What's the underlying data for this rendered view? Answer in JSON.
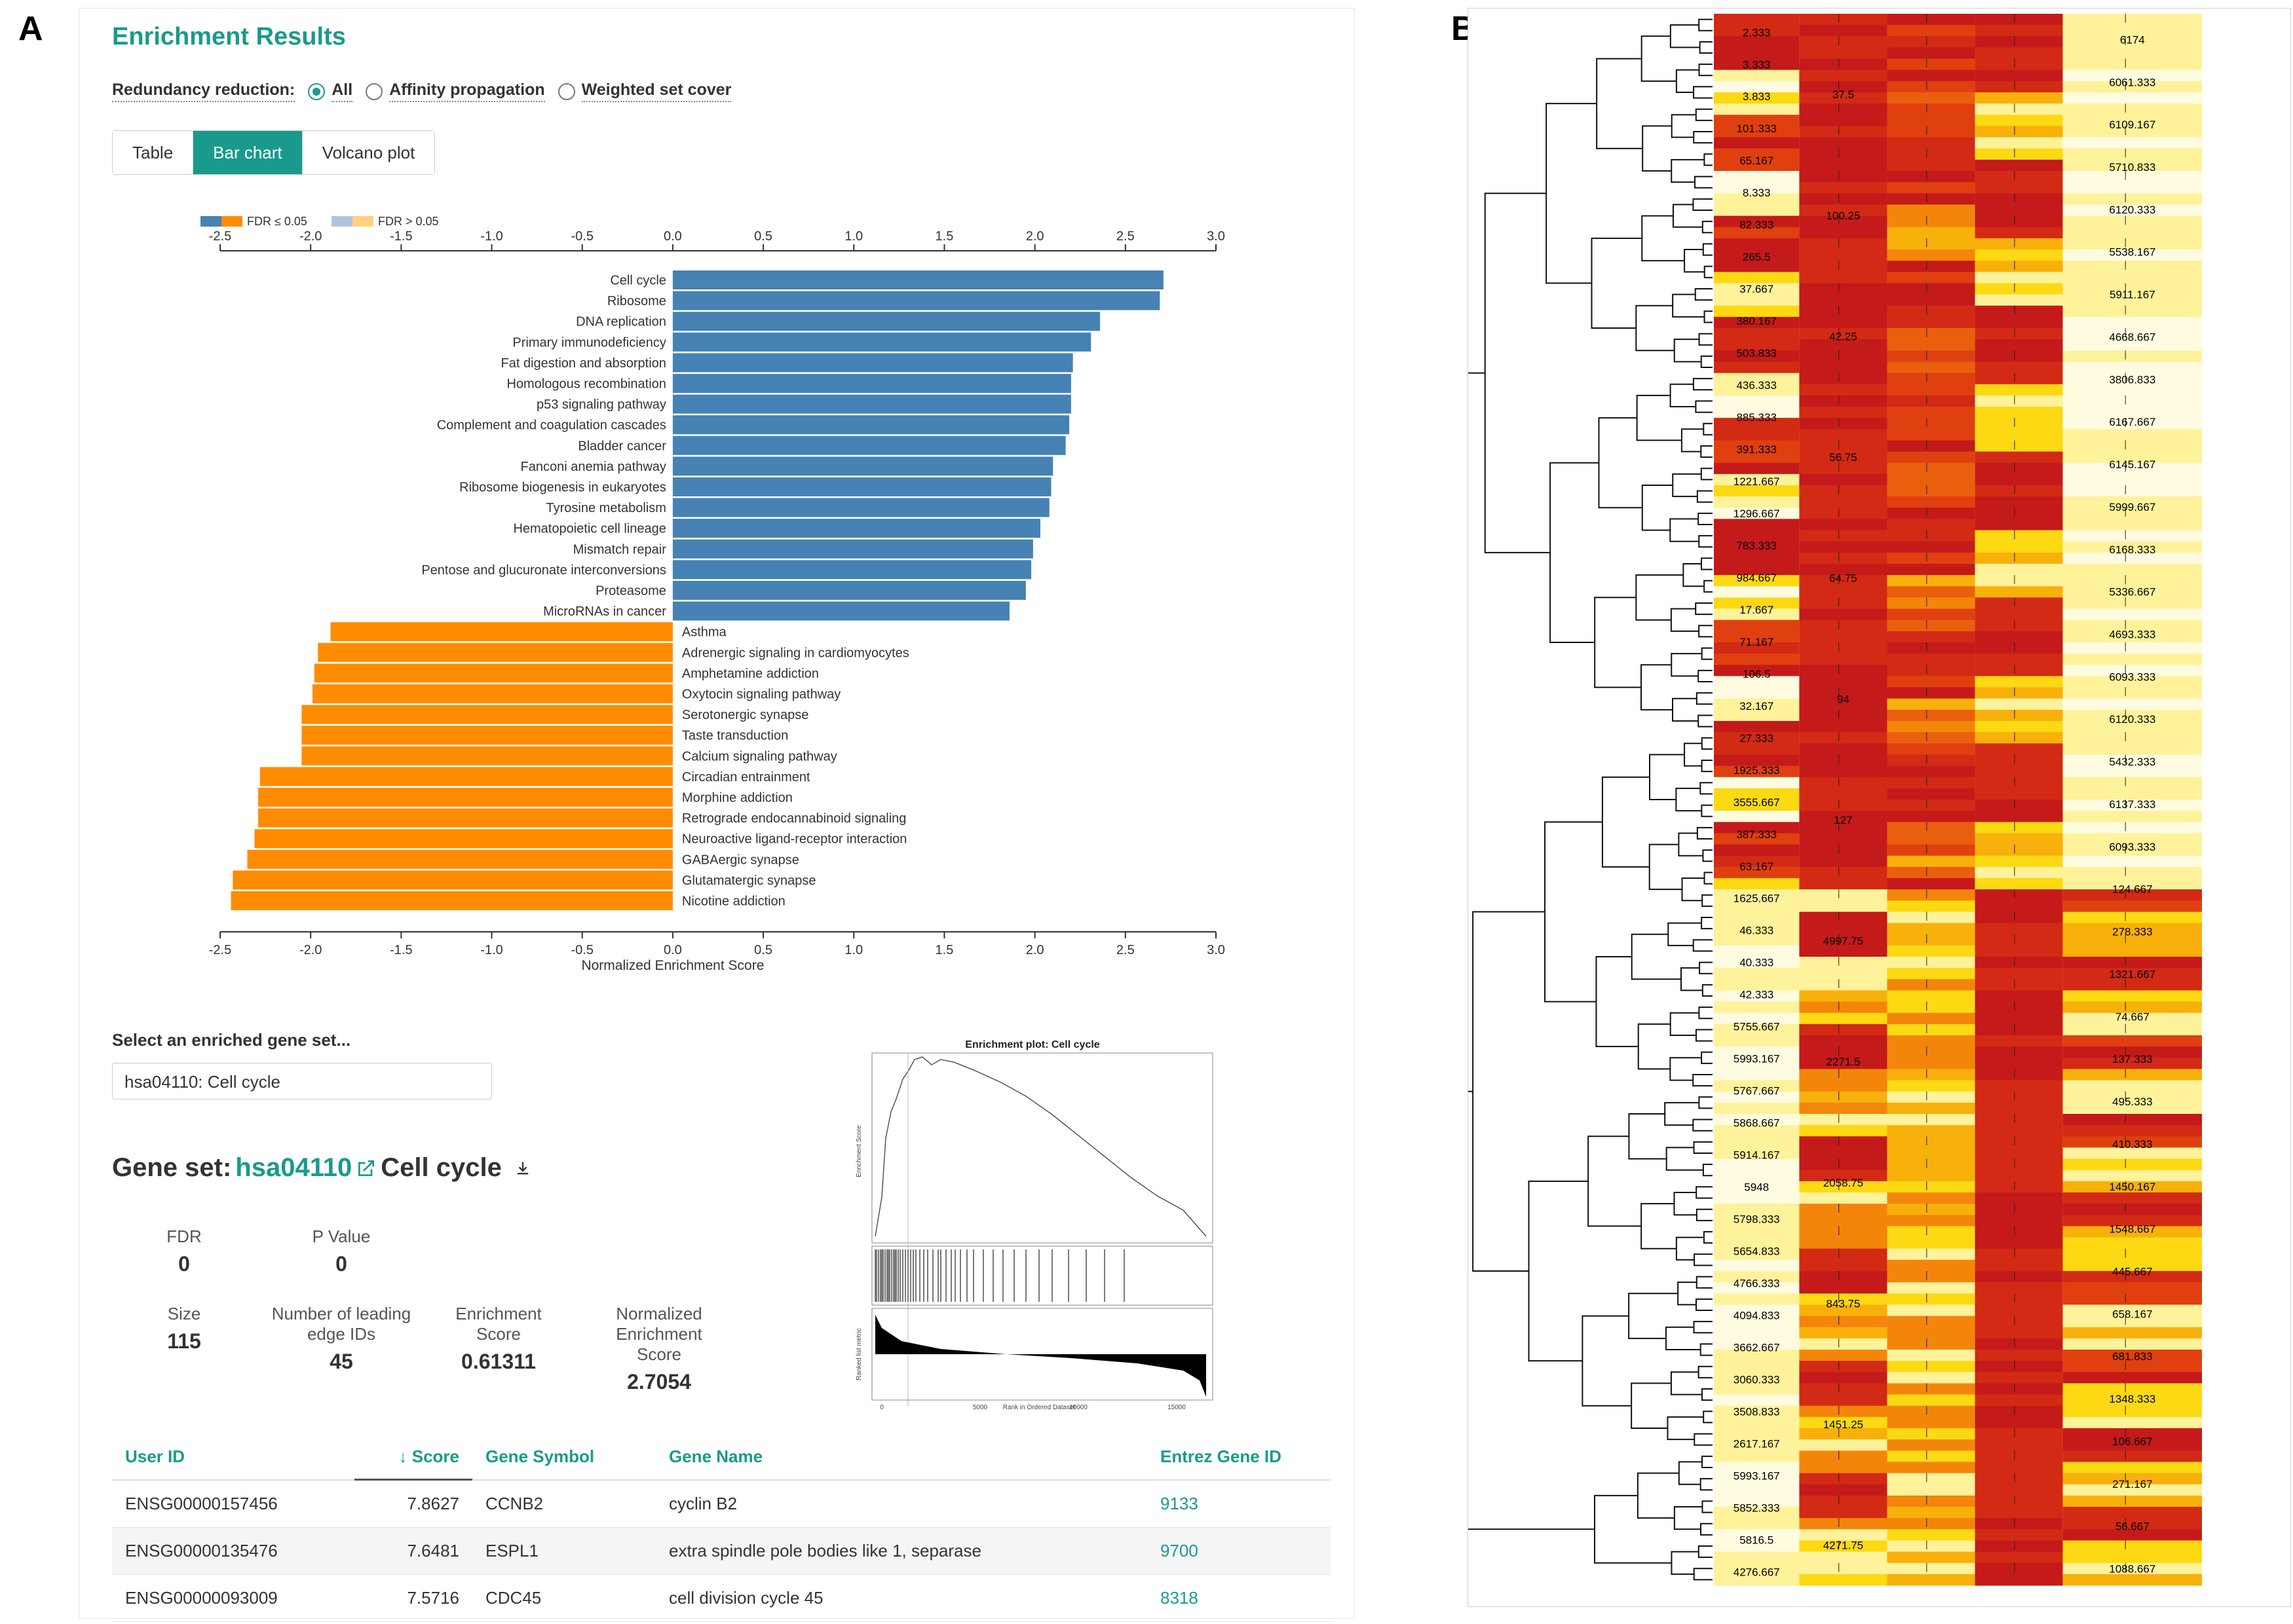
{
  "panel_a_letter": "A",
  "panel_b_letter": "B",
  "title": "Enrichment Results",
  "redundancy": {
    "label": "Redundancy reduction:",
    "options": [
      "All",
      "Affinity propagation",
      "Weighted set cover"
    ],
    "selected": "All"
  },
  "tabs": [
    "Table",
    "Bar chart",
    "Volcano plot"
  ],
  "active_tab": "Bar chart",
  "chart_data": {
    "type": "bar",
    "orientation": "horizontal",
    "xlabel": "Normalized Enrichment Score",
    "xlim": [
      -2.5,
      3.0
    ],
    "xticks": [
      "-2.5",
      "-2.0",
      "-1.5",
      "-1.0",
      "-0.5",
      "0.0",
      "0.5",
      "1.0",
      "1.5",
      "2.0",
      "2.5",
      "3.0"
    ],
    "legend": [
      "FDR ≤ 0.05",
      "FDR > 0.05"
    ],
    "colors": {
      "positive": "#4682b4",
      "negative": "#ff8c00",
      "pos_light": "#b0c4de",
      "neg_light": "#ffd27f"
    },
    "categories": [
      "Cell cycle",
      "Ribosome",
      "DNA replication",
      "Primary immunodeficiency",
      "Fat digestion and absorption",
      "Homologous recombination",
      "p53 signaling pathway",
      "Complement and coagulation cascades",
      "Bladder cancer",
      "Fanconi anemia pathway",
      "Ribosome biogenesis in eukaryotes",
      "Tyrosine metabolism",
      "Hematopoietic cell lineage",
      "Mismatch repair",
      "Pentose and glucuronate interconversions",
      "Proteasome",
      "MicroRNAs in cancer",
      "Asthma",
      "Adrenergic signaling in cardiomyocytes",
      "Amphetamine addiction",
      "Oxytocin signaling pathway",
      "Serotonergic synapse",
      "Taste transduction",
      "Calcium signaling pathway",
      "Circadian entrainment",
      "Morphine addiction",
      "Retrograde endocannabinoid signaling",
      "Neuroactive ligand-receptor interaction",
      "GABAergic synapse",
      "Glutamatergic synapse",
      "Nicotine addiction"
    ],
    "values": [
      2.71,
      2.69,
      2.36,
      2.31,
      2.21,
      2.2,
      2.2,
      2.19,
      2.17,
      2.1,
      2.09,
      2.08,
      2.03,
      1.99,
      1.98,
      1.95,
      1.86,
      -1.89,
      -1.96,
      -1.98,
      -1.99,
      -2.05,
      -2.05,
      -2.05,
      -2.28,
      -2.29,
      -2.29,
      -2.31,
      -2.35,
      -2.43,
      -2.44
    ]
  },
  "select_label": "Select an enriched gene set...",
  "select_value": "hsa04110: Cell cycle",
  "gene_set": {
    "prefix": "Gene set: ",
    "id": "hsa04110",
    "name": "Cell cycle"
  },
  "stats": {
    "fdr_label": "FDR",
    "fdr": "0",
    "p_label": "P Value",
    "p": "0",
    "size_label": "Size",
    "size": "115",
    "leading_label": "Number of leading edge IDs",
    "leading": "45",
    "es_label": "Enrichment Score",
    "es": "0.61311",
    "nes_label": "Normalized Enrichment Score",
    "nes": "2.7054"
  },
  "enrichment_plot": {
    "title": "Enrichment plot: Cell cycle",
    "ylabel_top": "Enrichment Score",
    "ylabel_bottom": "Ranked list metric",
    "xlabel": "Rank in Ordered Dataset",
    "ticks": [
      "0",
      "5000",
      "10000",
      "15000"
    ]
  },
  "gene_table": {
    "headers": [
      "User ID",
      "Score",
      "Gene Symbol",
      "Gene Name",
      "Entrez Gene ID"
    ],
    "rows": [
      [
        "ENSG00000157456",
        "7.8627",
        "CCNB2",
        "cyclin B2",
        "9133"
      ],
      [
        "ENSG00000135476",
        "7.6481",
        "ESPL1",
        "extra spindle pole bodies like 1, separase",
        "9700"
      ],
      [
        "ENSG00000093009",
        "7.5716",
        "CDC45",
        "cell division cycle 45",
        "8318"
      ]
    ]
  },
  "heatmap": {
    "type": "heatmap",
    "columns": 5,
    "rows": 140,
    "sample_labels": [
      "2.333",
      "3.333",
      "3.833",
      "101.333",
      "65.167",
      "8.333",
      "82.333",
      "265.5",
      "37.667",
      "380.167",
      "503.833",
      "436.333",
      "885.333",
      "391.333",
      "1221.667",
      "1296.667",
      "783.333",
      "984.667",
      "17.667",
      "71.167",
      "106.5",
      "32.167",
      "27.333",
      "1925.333",
      "3555.667",
      "387.333",
      "63.167",
      "1625.667",
      "46.333",
      "40.333",
      "42.333",
      "5755.667",
      "5993.167",
      "5767.667",
      "5868.667",
      "5914.167",
      "5948",
      "5798.333",
      "5654.833",
      "4766.333",
      "4094.833",
      "3662.667",
      "3060.333",
      "3508.833",
      "2617.167",
      "5993.167",
      "5852.333",
      "5816.5",
      "4276.667"
    ],
    "value_labels": [
      "37.5",
      "100.25",
      "42.25",
      "56.75",
      "64.75",
      "94",
      "127",
      "4997.75",
      "2271.5",
      "2058.75",
      "843.75",
      "1451.25",
      "4271.75"
    ],
    "scale_labels": [
      "6174",
      "6061.333",
      "6109.167",
      "5710.833",
      "6120.333",
      "5538.167",
      "5911.167",
      "4668.667",
      "3806.833",
      "6167.667",
      "6145.167",
      "5999.667",
      "6168.333",
      "5336.667",
      "4693.333",
      "6093.333",
      "6120.333",
      "5432.333",
      "6137.333",
      "6093.333",
      "124.667",
      "278.333",
      "1321.667",
      "74.667",
      "137.333",
      "495.333",
      "410.333",
      "1450.167",
      "1548.667",
      "445.667",
      "658.167",
      "681.833",
      "1348.333",
      "106.667",
      "271.167",
      "56.667",
      "1088.667"
    ]
  }
}
